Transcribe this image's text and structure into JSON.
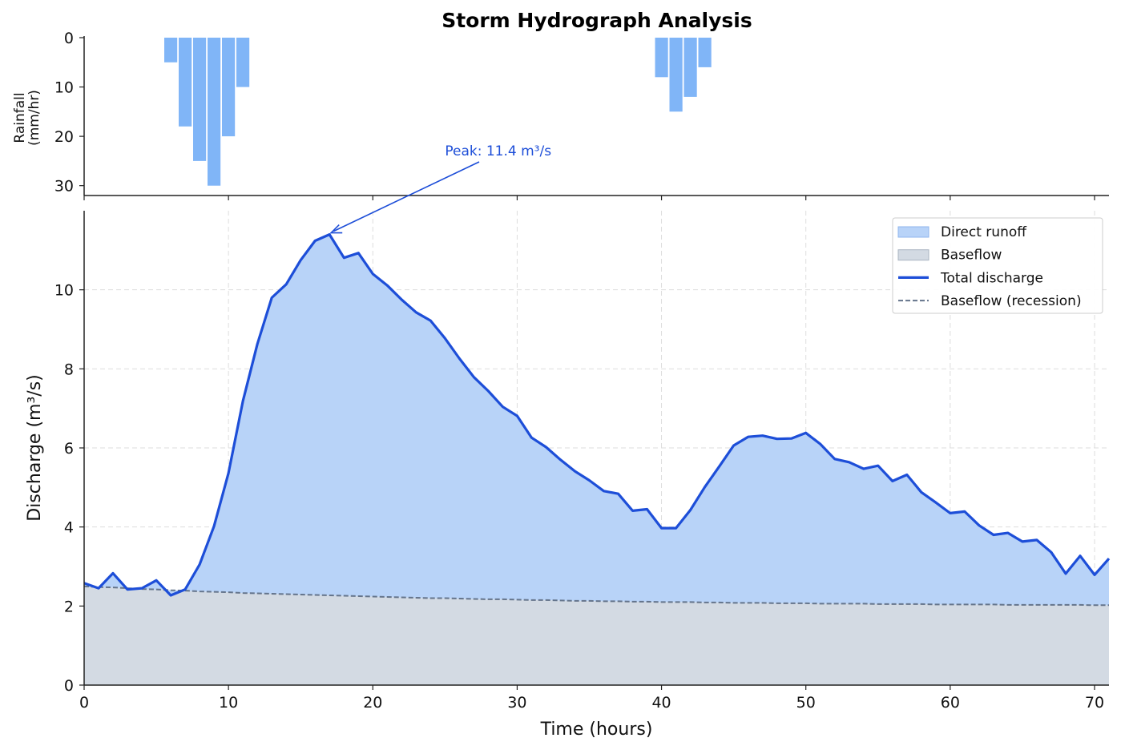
{
  "chart_data": [
    {
      "type": "bar",
      "title": "Storm Hydrograph Analysis",
      "ylabel_lines": [
        "Rainfall",
        "(mm/hr)"
      ],
      "yticks": [
        0,
        10,
        20,
        30
      ],
      "ylim": [
        32,
        0
      ],
      "y_inverted": true,
      "x_shared": true,
      "bar_color": "#80b5f7",
      "x": [
        6,
        7,
        8,
        9,
        10,
        11,
        40,
        41,
        42,
        43
      ],
      "values": [
        5,
        18,
        25,
        30,
        20,
        10,
        8,
        15,
        12,
        6
      ]
    },
    {
      "type": "area",
      "xlabel": "Time (hours)",
      "ylabel": "Discharge (m³/s)",
      "xlim": [
        0,
        71
      ],
      "ylim": [
        0,
        12
      ],
      "xticks": [
        0,
        10,
        20,
        30,
        40,
        50,
        60,
        70
      ],
      "yticks": [
        0,
        2,
        4,
        6,
        8,
        10
      ],
      "grid": true,
      "legend_position": "top-right",
      "legend": [
        "Direct runoff",
        "Baseflow",
        "Total discharge",
        "Baseflow (recession)"
      ],
      "colors": {
        "runoff_fill": "#b8d3f8",
        "baseflow_fill": "#d3dae3",
        "total_line": "#1d4ed8",
        "baseflow_line": "#64748b"
      },
      "x": [
        0,
        1,
        2,
        3,
        4,
        5,
        6,
        7,
        8,
        9,
        10,
        11,
        12,
        13,
        14,
        15,
        16,
        17,
        18,
        19,
        20,
        21,
        22,
        23,
        24,
        25,
        26,
        27,
        28,
        29,
        30,
        31,
        32,
        33,
        34,
        35,
        36,
        37,
        38,
        39,
        40,
        41,
        42,
        43,
        44,
        45,
        46,
        47,
        48,
        49,
        50,
        51,
        52,
        53,
        54,
        55,
        56,
        57,
        58,
        59,
        60,
        61,
        62,
        63,
        64,
        65,
        66,
        67,
        68,
        69,
        70,
        71
      ],
      "series": [
        {
          "name": "Total discharge",
          "values": [
            2.58,
            2.45,
            2.83,
            2.42,
            2.45,
            2.65,
            2.27,
            2.42,
            3.05,
            4.02,
            5.36,
            7.19,
            8.63,
            9.8,
            10.14,
            10.75,
            11.24,
            11.4,
            10.81,
            10.93,
            10.4,
            10.11,
            9.75,
            9.43,
            9.22,
            8.77,
            8.26,
            7.79,
            7.44,
            7.04,
            6.81,
            6.26,
            6.02,
            5.7,
            5.41,
            5.18,
            4.91,
            4.84,
            4.41,
            4.45,
            3.97,
            3.97,
            4.43,
            5.01,
            5.53,
            6.06,
            6.28,
            6.31,
            6.23,
            6.24,
            6.38,
            6.1,
            5.72,
            5.64,
            5.47,
            5.55,
            5.16,
            5.32,
            4.88,
            4.62,
            4.35,
            4.39,
            4.04,
            3.8,
            3.85,
            3.63,
            3.67,
            3.36,
            2.82,
            3.27,
            2.79,
            3.2
          ]
        },
        {
          "name": "Baseflow (recession)",
          "values": [
            2.5,
            2.48,
            2.47,
            2.45,
            2.43,
            2.42,
            2.4,
            2.39,
            2.37,
            2.36,
            2.35,
            2.33,
            2.32,
            2.31,
            2.3,
            2.29,
            2.28,
            2.27,
            2.26,
            2.25,
            2.24,
            2.23,
            2.22,
            2.21,
            2.2,
            2.2,
            2.19,
            2.18,
            2.17,
            2.17,
            2.16,
            2.15,
            2.15,
            2.14,
            2.13,
            2.13,
            2.12,
            2.12,
            2.11,
            2.11,
            2.1,
            2.1,
            2.1,
            2.09,
            2.09,
            2.08,
            2.08,
            2.08,
            2.07,
            2.07,
            2.07,
            2.06,
            2.06,
            2.06,
            2.06,
            2.05,
            2.05,
            2.05,
            2.05,
            2.04,
            2.04,
            2.04,
            2.04,
            2.04,
            2.03,
            2.03,
            2.03,
            2.03,
            2.03,
            2.03,
            2.02,
            2.02
          ]
        }
      ],
      "annotation": {
        "text": "Peak: 11.4 m³/s",
        "x": 17,
        "y": 11.4,
        "text_x": 25,
        "text_y": 13.4,
        "color": "#1d4ed8"
      }
    }
  ]
}
